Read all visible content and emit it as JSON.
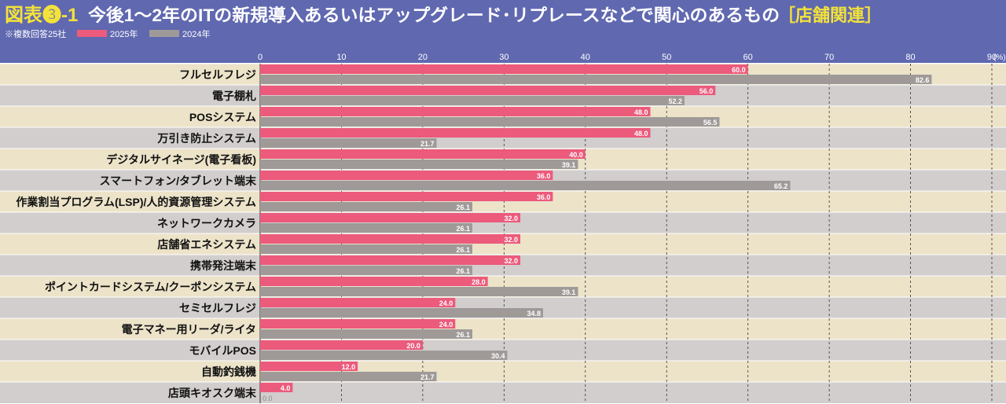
{
  "header": {
    "fig_label": "図表❸-1",
    "title": "今後1〜2年のITの新規導入あるいはアップグレード･リプレースなどで関心のあるもの",
    "category": "［店舗関連］",
    "note": "※複数回答25社"
  },
  "colors": {
    "header_bg": "#6068b0",
    "accent_yellow": "#f3e23a",
    "series_2025": "#ec5a7c",
    "series_2024": "#9f9a98",
    "row_odd": "#ece3c9",
    "row_even": "#d2cecd"
  },
  "chart_data": {
    "type": "bar",
    "orientation": "horizontal",
    "title": "今後1〜2年のITの新規導入あるいはアップグレード･リプレースなどで関心のあるもの［店舗関連］",
    "unit": "(%)",
    "xlim": [
      0,
      90
    ],
    "xticks": [
      0,
      10,
      20,
      30,
      40,
      50,
      60,
      70,
      80,
      90
    ],
    "grid": true,
    "legend": "top-left",
    "categories": [
      "フルセルフレジ",
      "電子棚札",
      "POSシステム",
      "万引き防止システム",
      "デジタルサイネージ(電子看板)",
      "スマートフォン/タブレット端末",
      "作業割当プログラム(LSP)/人的資源管理システム",
      "ネットワークカメラ",
      "店舗省エネシステム",
      "携帯発注端末",
      "ポイントカードシステム/クーポンシステム",
      "セミセルフレジ",
      "電子マネー用リーダ/ライタ",
      "モバイルPOS",
      "自動釣銭機",
      "店頭キオスク端末"
    ],
    "series": [
      {
        "name": "2025年",
        "values": [
          60.0,
          56.0,
          48.0,
          48.0,
          40.0,
          36.0,
          36.0,
          32.0,
          32.0,
          32.0,
          28.0,
          24.0,
          24.0,
          20.0,
          12.0,
          4.0
        ]
      },
      {
        "name": "2024年",
        "values": [
          82.6,
          52.2,
          56.5,
          21.7,
          39.1,
          65.2,
          26.1,
          26.1,
          26.1,
          26.1,
          39.1,
          34.8,
          26.1,
          30.4,
          21.7,
          0.0
        ]
      }
    ]
  }
}
